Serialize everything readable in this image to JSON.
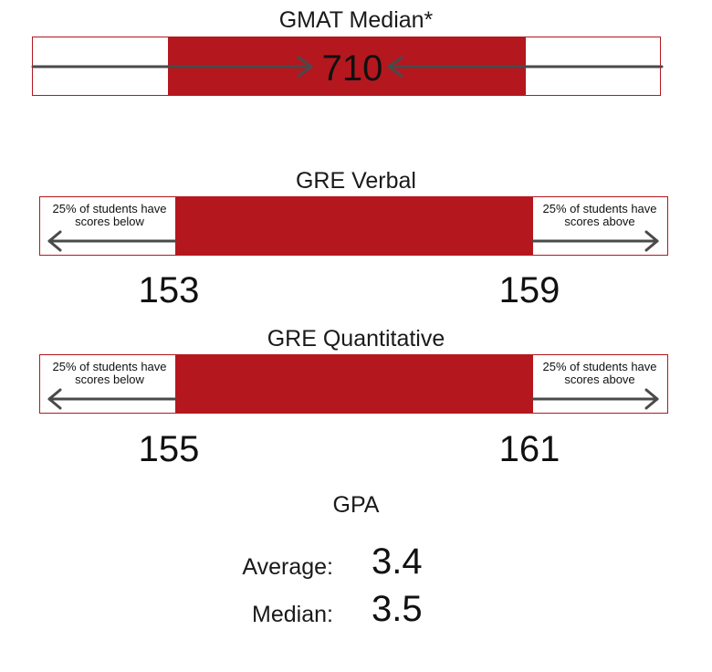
{
  "colors": {
    "accent": "#b5171f",
    "arrow": "#4a4a4a",
    "text": "#111111"
  },
  "gmat": {
    "title": "GMAT Median*",
    "value": "710"
  },
  "gre_verbal": {
    "title": "GRE Verbal",
    "below_text": "25% of students have scores below",
    "above_text": "25% of students have scores above",
    "low_value": "153",
    "high_value": "159"
  },
  "gre_quant": {
    "title": "GRE Quantitative",
    "below_text": "25% of students have scores below",
    "above_text": "25% of students have scores above",
    "low_value": "155",
    "high_value": "161"
  },
  "gpa": {
    "title": "GPA",
    "average_label": "Average:",
    "average_value": "3.4",
    "median_label": "Median:",
    "median_value": "3.5"
  }
}
